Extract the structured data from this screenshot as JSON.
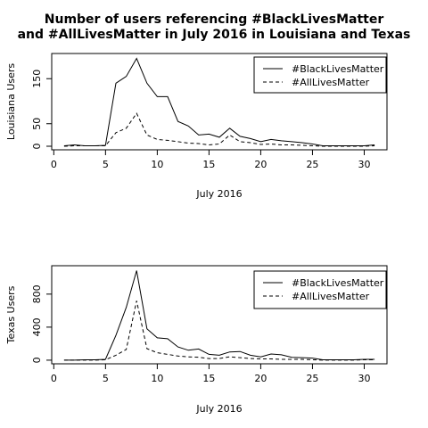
{
  "title_lines": [
    "Number of users referencing #BlackLivesMatter",
    "and #AllLivesMatter in July 2016 in Louisiana and Texas"
  ],
  "chart_data": [
    {
      "type": "line",
      "title": "Number of users referencing #BlackLivesMatter and #AllLivesMatter in July 2016 in Louisiana and Texas",
      "xlabel": "July 2016",
      "ylabel": "Louisiana Users",
      "x": [
        1,
        2,
        3,
        4,
        5,
        6,
        7,
        8,
        9,
        10,
        11,
        12,
        13,
        14,
        15,
        16,
        17,
        18,
        19,
        20,
        21,
        22,
        23,
        24,
        25,
        26,
        27,
        28,
        29,
        30,
        31
      ],
      "xlim": [
        1,
        31
      ],
      "ylim": [
        0,
        198
      ],
      "xticks": [
        0,
        5,
        10,
        15,
        20,
        25,
        30
      ],
      "yticks": [
        0,
        50,
        150
      ],
      "series": [
        {
          "name": "#BlackLivesMatter",
          "line_style": "solid",
          "values": [
            1,
            3,
            1,
            1,
            2,
            140,
            155,
            195,
            140,
            110,
            110,
            55,
            45,
            25,
            27,
            20,
            40,
            22,
            17,
            10,
            15,
            12,
            10,
            8,
            5,
            1,
            1,
            1,
            1,
            1,
            3
          ]
        },
        {
          "name": "#AllLivesMatter",
          "line_style": "dashed",
          "values": [
            0,
            1,
            1,
            1,
            1,
            30,
            40,
            73,
            25,
            15,
            13,
            10,
            7,
            6,
            3,
            5,
            25,
            10,
            8,
            4,
            5,
            3,
            3,
            2,
            1,
            0,
            0,
            0,
            0,
            0,
            1
          ]
        }
      ],
      "legend": "top-right",
      "grid": false
    },
    {
      "type": "line",
      "xlabel": "July 2016",
      "ylabel": "Texas Users",
      "x": [
        1,
        2,
        3,
        4,
        5,
        6,
        7,
        8,
        9,
        10,
        11,
        12,
        13,
        14,
        15,
        16,
        17,
        18,
        19,
        20,
        21,
        22,
        23,
        24,
        25,
        26,
        27,
        28,
        29,
        30,
        31
      ],
      "xlim": [
        1,
        31
      ],
      "ylim": [
        0,
        1100
      ],
      "xticks": [
        0,
        5,
        10,
        15,
        20,
        25,
        30
      ],
      "yticks": [
        0,
        400,
        800
      ],
      "series": [
        {
          "name": "#BlackLivesMatter",
          "line_style": "solid",
          "values": [
            0,
            0,
            5,
            5,
            10,
            300,
            640,
            1085,
            380,
            270,
            260,
            160,
            120,
            135,
            70,
            60,
            100,
            105,
            60,
            40,
            75,
            65,
            35,
            30,
            25,
            5,
            5,
            5,
            5,
            10,
            10
          ]
        },
        {
          "name": "#AllLivesMatter",
          "line_style": "dashed",
          "values": [
            0,
            0,
            0,
            0,
            5,
            60,
            130,
            720,
            140,
            90,
            70,
            50,
            40,
            35,
            20,
            20,
            40,
            30,
            20,
            15,
            15,
            10,
            10,
            10,
            5,
            0,
            0,
            0,
            0,
            5,
            5
          ]
        }
      ],
      "legend": "top-right",
      "grid": false
    }
  ]
}
